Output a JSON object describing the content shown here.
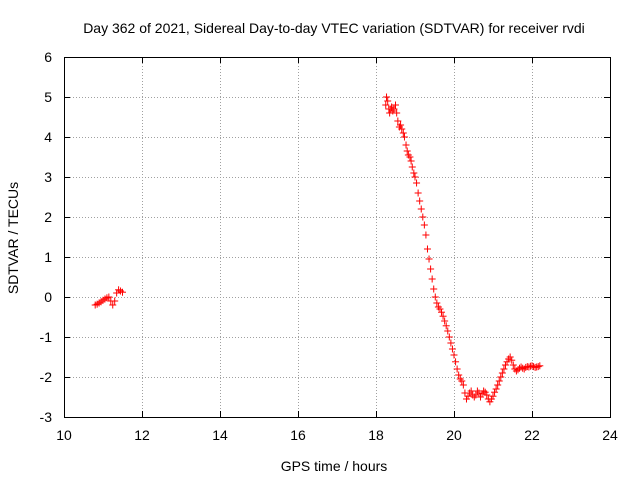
{
  "chart_data": {
    "type": "scatter",
    "title": "Day 362 of 2021, Sidereal Day-to-day VTEC variation (SDTVAR) for receiver rvdi",
    "xlabel": "GPS time / hours",
    "ylabel": "SDTVAR / TECUs",
    "xlim": [
      10,
      24
    ],
    "ylim": [
      -3,
      6
    ],
    "xticks": [
      10,
      12,
      14,
      16,
      18,
      20,
      22,
      24
    ],
    "yticks": [
      -3,
      -2,
      -1,
      0,
      1,
      2,
      3,
      4,
      5,
      6
    ],
    "xtick_labels": [
      "10",
      "12",
      "14",
      "16",
      "18",
      "20",
      "22",
      "24"
    ],
    "ytick_labels": [
      "-3",
      "-2",
      "-1",
      "0",
      "1",
      "2",
      "3",
      "4",
      "5",
      "6"
    ],
    "grid": true,
    "marker": "+",
    "color": "#ff0000",
    "series": [
      {
        "name": "SDTVAR",
        "x": [
          10.8,
          10.85,
          10.9,
          10.95,
          11.0,
          11.05,
          11.1,
          11.15,
          11.2,
          11.25,
          11.3,
          11.35,
          11.4,
          11.45,
          11.5,
          18.25,
          18.27,
          18.3,
          18.33,
          18.35,
          18.38,
          18.4,
          18.43,
          18.46,
          18.5,
          18.53,
          18.56,
          18.6,
          18.63,
          18.66,
          18.7,
          18.73,
          18.77,
          18.8,
          18.83,
          18.87,
          18.9,
          18.93,
          18.97,
          19.0,
          19.04,
          19.08,
          19.12,
          19.16,
          19.2,
          19.24,
          19.28,
          19.32,
          19.36,
          19.4,
          19.44,
          19.48,
          19.52,
          19.56,
          19.6,
          19.64,
          19.68,
          19.72,
          19.76,
          19.8,
          19.84,
          19.88,
          19.92,
          19.96,
          20.0,
          20.04,
          20.08,
          20.12,
          20.16,
          20.2,
          20.24,
          20.28,
          20.32,
          20.36,
          20.4,
          20.44,
          20.48,
          20.52,
          20.56,
          20.6,
          20.64,
          20.68,
          20.72,
          20.76,
          20.8,
          20.84,
          20.88,
          20.92,
          20.96,
          21.0,
          21.04,
          21.08,
          21.12,
          21.16,
          21.2,
          21.24,
          21.28,
          21.32,
          21.36,
          21.4,
          21.44,
          21.48,
          21.52,
          21.56,
          21.6,
          21.64,
          21.68,
          21.72,
          21.76,
          21.8,
          21.84,
          21.88,
          21.92,
          21.96,
          22.0,
          22.04,
          22.08,
          22.12,
          22.16,
          22.2
        ],
        "y": [
          -0.2,
          -0.18,
          -0.15,
          -0.12,
          -0.08,
          -0.05,
          -0.02,
          0.0,
          -0.1,
          -0.2,
          -0.1,
          0.1,
          0.18,
          0.15,
          0.12,
          4.8,
          5.0,
          4.9,
          4.7,
          4.6,
          4.7,
          4.75,
          4.65,
          4.7,
          4.8,
          4.6,
          4.4,
          4.25,
          4.3,
          4.2,
          4.1,
          4.0,
          3.8,
          3.65,
          3.55,
          3.5,
          3.4,
          3.25,
          3.1,
          3.0,
          2.85,
          2.6,
          2.4,
          2.2,
          2.0,
          1.8,
          1.55,
          1.2,
          0.95,
          0.7,
          0.45,
          0.2,
          0.0,
          -0.15,
          -0.25,
          -0.3,
          -0.38,
          -0.48,
          -0.6,
          -0.72,
          -0.85,
          -1.0,
          -1.15,
          -1.3,
          -1.45,
          -1.62,
          -1.8,
          -1.95,
          -2.05,
          -2.1,
          -2.2,
          -2.4,
          -2.55,
          -2.48,
          -2.4,
          -2.35,
          -2.45,
          -2.5,
          -2.45,
          -2.35,
          -2.4,
          -2.5,
          -2.42,
          -2.35,
          -2.38,
          -2.45,
          -2.55,
          -2.62,
          -2.55,
          -2.48,
          -2.38,
          -2.3,
          -2.2,
          -2.1,
          -2.0,
          -1.9,
          -1.8,
          -1.7,
          -1.62,
          -1.55,
          -1.5,
          -1.58,
          -1.7,
          -1.8,
          -1.85,
          -1.82,
          -1.78,
          -1.75,
          -1.78,
          -1.8,
          -1.76,
          -1.74,
          -1.75,
          -1.73,
          -1.72,
          -1.74,
          -1.76,
          -1.75,
          -1.74,
          -1.72
        ]
      }
    ]
  }
}
